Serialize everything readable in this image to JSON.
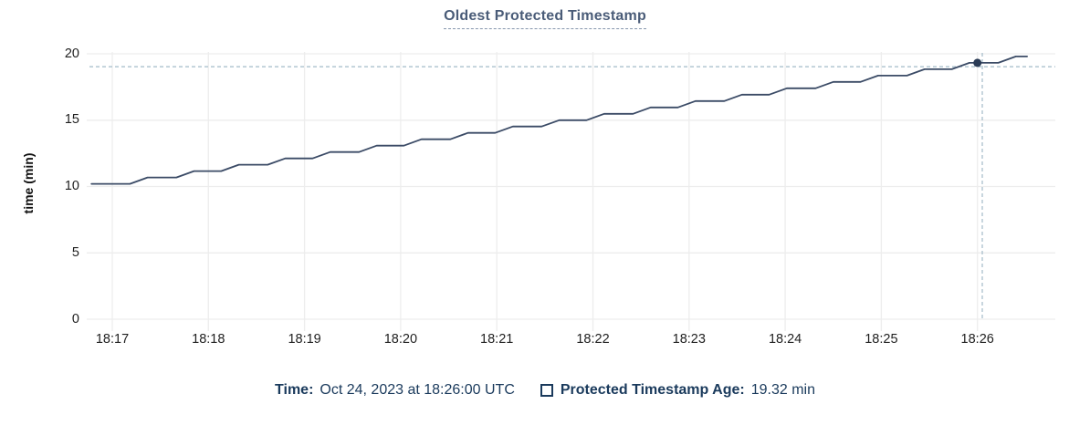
{
  "title": "Oldest Protected Timestamp",
  "y_axis_label": "time (min)",
  "tooltip": {
    "time_label": "Time:",
    "time_value": "Oct 24, 2023 at 18:26:00 UTC",
    "series_label": "Protected Timestamp Age:",
    "series_value": "19.32 min"
  },
  "colors": {
    "title": "#4a5c78",
    "title_underline": "#8595ac",
    "navy_text": "#1a3a5c",
    "line": "#3b4b66",
    "marker": "#2a3b55",
    "crosshair": "#a3bbc9",
    "grid": "#ededed",
    "tick_text": "#1f1f1f"
  },
  "chart_data": {
    "type": "line",
    "title": "Oldest Protected Timestamp",
    "xlabel": "",
    "ylabel": "time (min)",
    "ylim": [
      0,
      20
    ],
    "y_ticks": [
      0,
      5,
      10,
      15,
      20
    ],
    "x_tick_labels": [
      "18:17",
      "18:18",
      "18:19",
      "18:20",
      "18:21",
      "18:22",
      "18:23",
      "18:24",
      "18:25",
      "18:26"
    ],
    "x_unit": "seconds since 18:17:00",
    "grid": true,
    "legend_position": "bottom",
    "series": [
      {
        "name": "Protected Timestamp Age",
        "points": [
          [
            -13,
            10.2
          ],
          [
            11,
            10.2
          ],
          [
            22,
            10.68
          ],
          [
            40,
            10.68
          ],
          [
            51,
            11.16
          ],
          [
            68,
            11.16
          ],
          [
            79,
            11.64
          ],
          [
            97,
            11.64
          ],
          [
            108,
            12.12
          ],
          [
            125,
            12.12
          ],
          [
            136,
            12.6
          ],
          [
            154,
            12.6
          ],
          [
            165,
            13.08
          ],
          [
            182,
            13.08
          ],
          [
            193,
            13.56
          ],
          [
            211,
            13.56
          ],
          [
            222,
            14.04
          ],
          [
            239,
            14.04
          ],
          [
            250,
            14.52
          ],
          [
            268,
            14.52
          ],
          [
            279,
            15.0
          ],
          [
            296,
            15.0
          ],
          [
            307,
            15.48
          ],
          [
            325,
            15.48
          ],
          [
            336,
            15.96
          ],
          [
            353,
            15.96
          ],
          [
            364,
            16.44
          ],
          [
            382,
            16.44
          ],
          [
            393,
            16.92
          ],
          [
            410,
            16.92
          ],
          [
            421,
            17.4
          ],
          [
            439,
            17.4
          ],
          [
            450,
            17.88
          ],
          [
            467,
            17.88
          ],
          [
            478,
            18.36
          ],
          [
            496,
            18.36
          ],
          [
            507,
            18.84
          ],
          [
            524,
            18.84
          ],
          [
            535,
            19.32
          ],
          [
            553,
            19.32
          ],
          [
            564,
            19.8
          ],
          [
            571,
            19.8
          ]
        ]
      }
    ],
    "highlight": {
      "x_label": "18:26:00",
      "x_seconds": 540,
      "y_value": 19.32
    },
    "crosshair": {
      "x_seconds": 543,
      "y_value": 19.03
    }
  }
}
